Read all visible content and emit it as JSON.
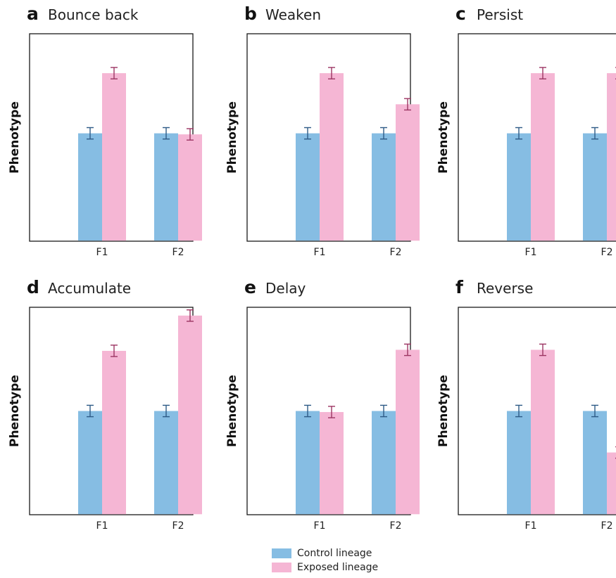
{
  "colors": {
    "control": "#86bde3",
    "exposed": "#f5b6d4",
    "control_err": "#2d5a86",
    "exposed_err": "#9c3563"
  },
  "chart_data": [
    {
      "type": "bar",
      "panel": "a",
      "title": "Bounce back",
      "ylabel": "Phenotype",
      "categories": [
        "F1",
        "F2"
      ],
      "ylim": [
        0,
        10
      ],
      "series": [
        {
          "name": "Control lineage",
          "values": [
            5.2,
            5.2
          ],
          "errors": [
            0.25,
            0.25
          ]
        },
        {
          "name": "Exposed lineage",
          "values": [
            8.1,
            5.15
          ],
          "errors": [
            0.25,
            0.25
          ]
        }
      ]
    },
    {
      "type": "bar",
      "panel": "b",
      "title": "Weaken",
      "ylabel": "Phenotype",
      "categories": [
        "F1",
        "F2"
      ],
      "ylim": [
        0,
        10
      ],
      "series": [
        {
          "name": "Control lineage",
          "values": [
            5.2,
            5.2
          ],
          "errors": [
            0.25,
            0.25
          ]
        },
        {
          "name": "Exposed lineage",
          "values": [
            8.1,
            6.6
          ],
          "errors": [
            0.25,
            0.25
          ]
        }
      ]
    },
    {
      "type": "bar",
      "panel": "c",
      "title": "Persist",
      "ylabel": "Phenotype",
      "categories": [
        "F1",
        "F2"
      ],
      "ylim": [
        0,
        10
      ],
      "series": [
        {
          "name": "Control lineage",
          "values": [
            5.2,
            5.2
          ],
          "errors": [
            0.25,
            0.25
          ]
        },
        {
          "name": "Exposed lineage",
          "values": [
            8.1,
            8.1
          ],
          "errors": [
            0.25,
            0.25
          ]
        }
      ]
    },
    {
      "type": "bar",
      "panel": "d",
      "title": "Accumulate",
      "ylabel": "Phenotype",
      "categories": [
        "F1",
        "F2"
      ],
      "ylim": [
        0,
        10
      ],
      "series": [
        {
          "name": "Control lineage",
          "values": [
            5.0,
            5.0
          ],
          "errors": [
            0.25,
            0.25
          ]
        },
        {
          "name": "Exposed lineage",
          "values": [
            7.9,
            9.6
          ],
          "errors": [
            0.25,
            0.25
          ]
        }
      ]
    },
    {
      "type": "bar",
      "panel": "e",
      "title": "Delay",
      "ylabel": "Phenotype",
      "categories": [
        "F1",
        "F2"
      ],
      "ylim": [
        0,
        10
      ],
      "series": [
        {
          "name": "Control lineage",
          "values": [
            5.0,
            5.0
          ],
          "errors": [
            0.25,
            0.25
          ]
        },
        {
          "name": "Exposed lineage",
          "values": [
            4.95,
            7.95
          ],
          "errors": [
            0.25,
            0.25
          ]
        }
      ]
    },
    {
      "type": "bar",
      "panel": "f",
      "title": "Reverse",
      "ylabel": "Phenotype",
      "categories": [
        "F1",
        "F2"
      ],
      "ylim": [
        0,
        10
      ],
      "series": [
        {
          "name": "Control lineage",
          "values": [
            5.0,
            5.0
          ],
          "errors": [
            0.25,
            0.25
          ]
        },
        {
          "name": "Exposed lineage",
          "values": [
            7.95,
            3.0
          ],
          "errors": [
            0.25,
            0.25
          ]
        }
      ]
    }
  ],
  "legend": {
    "control": "Control lineage",
    "exposed": "Exposed lineage"
  }
}
